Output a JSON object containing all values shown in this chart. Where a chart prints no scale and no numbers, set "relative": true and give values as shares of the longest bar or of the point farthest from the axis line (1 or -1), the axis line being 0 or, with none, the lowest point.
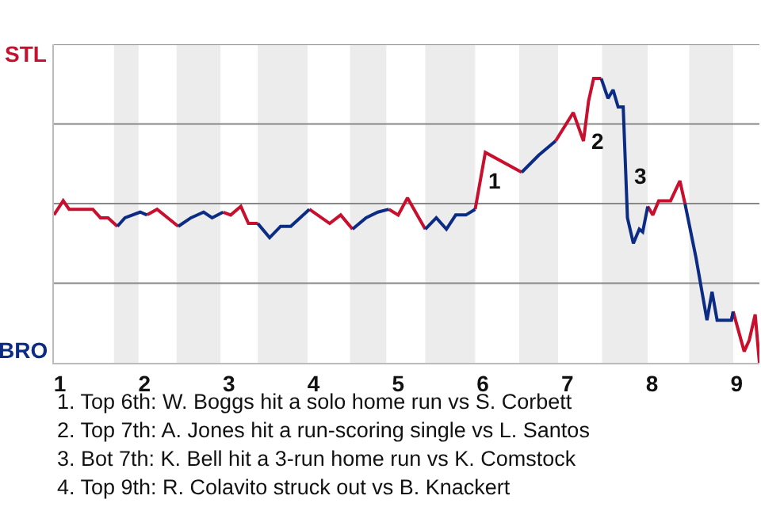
{
  "chart_data": {
    "type": "line",
    "relative": true,
    "xlim": [
      0.93,
      9.27
    ],
    "xticks": [
      1,
      2,
      3,
      4,
      5,
      6,
      7,
      8,
      9
    ],
    "grid": false,
    "marker": "none",
    "line_style": "solid",
    "series": [
      {
        "color": "#c8102e",
        "x": [
          0.93,
          1.04,
          1.11,
          1.39,
          1.48,
          1.57,
          1.68,
          null,
          2.03,
          2.15,
          2.4,
          null,
          2.93,
          3.02,
          3.14,
          3.23,
          3.34,
          null,
          3.95,
          4.19,
          4.32,
          4.46,
          null,
          4.89,
          5.0,
          5.11,
          5.32,
          null,
          5.91,
          6.03,
          6.46,
          null,
          6.86,
          7.07,
          7.19,
          7.25,
          7.31,
          7.4,
          null,
          7.95,
          8.01,
          8.08,
          8.22,
          8.33,
          8.39,
          null,
          8.94,
          8.96,
          9.09,
          9.15,
          9.22,
          9.27
        ],
        "values": [
          0.52,
          0.57,
          0.54,
          0.54,
          0.51,
          0.51,
          0.48,
          null,
          0.52,
          0.54,
          0.48,
          null,
          0.53,
          0.52,
          0.55,
          0.49,
          0.49,
          null,
          0.54,
          0.49,
          0.52,
          0.47,
          null,
          0.54,
          0.52,
          0.58,
          0.47,
          null,
          0.54,
          0.74,
          0.67,
          null,
          0.78,
          0.88,
          0.78,
          0.92,
          1,
          1,
          null,
          0.55,
          0.52,
          0.57,
          0.57,
          0.64,
          0.56,
          null,
          0.15,
          0.18,
          0.04,
          0.08,
          0.17,
          0
        ]
      },
      {
        "color": "#0c2c84",
        "x": [
          1.68,
          1.77,
          1.95,
          2.03,
          null,
          2.4,
          2.55,
          2.7,
          2.8,
          2.93,
          null,
          3.34,
          3.48,
          3.61,
          3.73,
          3.95,
          null,
          4.46,
          4.62,
          4.76,
          4.89,
          null,
          5.32,
          5.45,
          5.57,
          5.68,
          5.8,
          5.91,
          null,
          6.46,
          6.66,
          6.86,
          null,
          7.4,
          7.48,
          7.54,
          7.6,
          7.66,
          7.71,
          7.78,
          7.85,
          7.89,
          7.95,
          null,
          8.39,
          8.52,
          8.65,
          8.71,
          8.77,
          8.94,
          8.96
        ],
        "values": [
          0.48,
          0.51,
          0.53,
          0.52,
          null,
          0.48,
          0.51,
          0.53,
          0.51,
          0.53,
          null,
          0.49,
          0.44,
          0.48,
          0.48,
          0.54,
          null,
          0.47,
          0.51,
          0.53,
          0.54,
          null,
          0.47,
          0.51,
          0.47,
          0.52,
          0.52,
          0.54,
          null,
          0.67,
          0.73,
          0.78,
          null,
          1,
          0.93,
          0.96,
          0.9,
          0.9,
          0.51,
          0.42,
          0.47,
          0.46,
          0.55,
          null,
          0.56,
          0.37,
          0.15,
          0.25,
          0.15,
          0.15,
          0.18
        ]
      }
    ],
    "ref_lines": [
      {
        "axis": "y",
        "value": 0.28,
        "color": "#888888"
      },
      {
        "axis": "y",
        "value": 0.56,
        "color": "#888888"
      },
      {
        "axis": "y",
        "value": 0.84,
        "color": "#888888"
      },
      {
        "axis": "y",
        "value": 1.12,
        "color": "#888888"
      }
    ],
    "bands": [
      {
        "axis": "x",
        "from": 1.64,
        "to": 1.93,
        "color": "#ececec"
      },
      {
        "axis": "x",
        "from": 2.38,
        "to": 2.9,
        "color": "#ececec"
      },
      {
        "axis": "x",
        "from": 3.34,
        "to": 3.93,
        "color": "#ececec"
      },
      {
        "axis": "x",
        "from": 4.43,
        "to": 4.86,
        "color": "#ececec"
      },
      {
        "axis": "x",
        "from": 5.32,
        "to": 5.91,
        "color": "#ececec"
      },
      {
        "axis": "x",
        "from": 6.43,
        "to": 6.89,
        "color": "#ececec"
      },
      {
        "axis": "x",
        "from": 7.41,
        "to": 7.95,
        "color": "#ececec"
      },
      {
        "axis": "x",
        "from": 8.44,
        "to": 8.96,
        "color": "#ececec"
      }
    ],
    "annotations": [
      "STL",
      "BRO",
      {
        "text": "1",
        "x": 5.97,
        "y": 0.64
      },
      {
        "text": "2",
        "x": 7.19,
        "y": 0.78
      },
      {
        "text": "3",
        "x": 7.69,
        "y": 0.66
      },
      "1. Top 6th: W. Boggs hit a solo home run vs S. Corbett",
      "2. Top 7th: A. Jones hit a run-scoring single vs L. Santos",
      "3. Bot 7th: K. Bell hit a 3-run home run vs K. Comstock",
      "4. Top 9th: R. Colavito struck out vs B. Knackert"
    ]
  }
}
